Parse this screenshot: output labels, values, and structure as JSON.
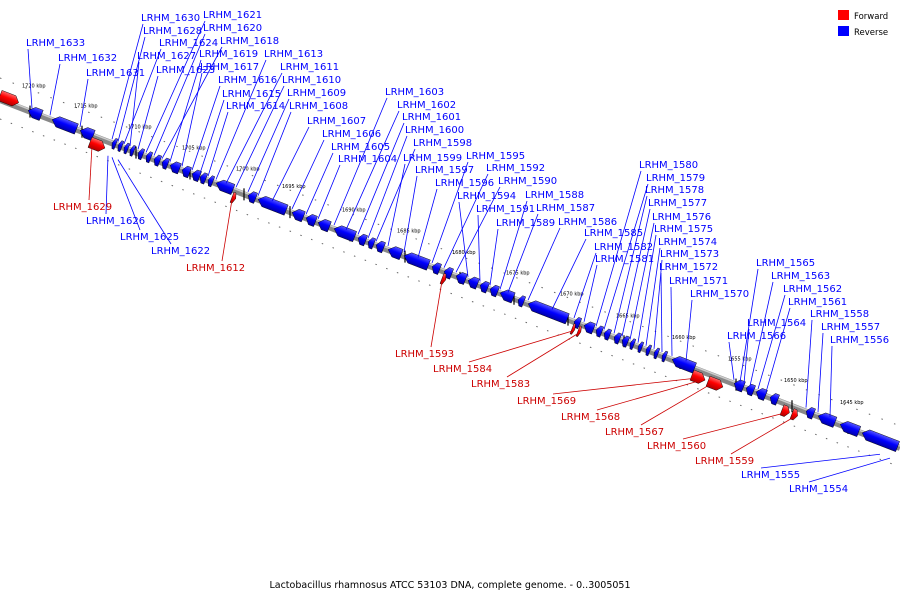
{
  "legend": [
    {
      "label": "Forward",
      "color": "#ff0000"
    },
    {
      "label": "Reverse",
      "color": "#0000ff"
    }
  ],
  "caption": "Lactobacillus rhamnosus ATCC 53103 DNA, complete genome. - 0..3005051",
  "ticks": [
    "1720 kbp",
    "1715 kbp",
    "1710 kbp",
    "1705 kbp",
    "1700 kbp",
    "1695 kbp",
    "1690 kbp",
    "1685 kbp",
    "1680 kbp",
    "1675 kbp",
    "1670 kbp",
    "1665 kbp",
    "1660 kbp",
    "1655 kbp",
    "1650 kbp",
    "1645 kbp"
  ],
  "reverse_genes": [
    "LRHM_1633",
    "LRHM_1632",
    "LRHM_1631",
    "LRHM_1630",
    "LRHM_1628",
    "LRHM_1624",
    "LRHM_1627",
    "LRHM_1623",
    "LRHM_1621",
    "LRHM_1620",
    "LRHM_1618",
    "LRHM_1619",
    "LRHM_1617",
    "LRHM_1616",
    "LRHM_1615",
    "LRHM_1614",
    "LRHM_1613",
    "LRHM_1611",
    "LRHM_1610",
    "LRHM_1609",
    "LRHM_1608",
    "LRHM_1607",
    "LRHM_1606",
    "LRHM_1605",
    "LRHM_1604",
    "LRHM_1603",
    "LRHM_1602",
    "LRHM_1601",
    "LRHM_1600",
    "LRHM_1598",
    "LRHM_1599",
    "LRHM_1597",
    "LRHM_1596",
    "LRHM_1595",
    "LRHM_1592",
    "LRHM_1590",
    "LRHM_1594",
    "LRHM_1591",
    "LRHM_1589",
    "LRHM_1588",
    "LRHM_1587",
    "LRHM_1586",
    "LRHM_1585",
    "LRHM_1582",
    "LRHM_1581",
    "LRHM_1580",
    "LRHM_1579",
    "LRHM_1578",
    "LRHM_1577",
    "LRHM_1576",
    "LRHM_1575",
    "LRHM_1574",
    "LRHM_1573",
    "LRHM_1572",
    "LRHM_1571",
    "LRHM_1570",
    "LRHM_1626",
    "LRHM_1625",
    "LRHM_1622",
    "LRHM_1565",
    "LRHM_1563",
    "LRHM_1562",
    "LRHM_1561",
    "LRHM_1564",
    "LRHM_1566",
    "LRHM_1558",
    "LRHM_1557",
    "LRHM_1556",
    "LRHM_1555",
    "LRHM_1554"
  ],
  "forward_genes": [
    "LRHM_1629",
    "LRHM_1612",
    "LRHM_1593",
    "LRHM_1584",
    "LRHM_1583",
    "LRHM_1569",
    "LRHM_1568",
    "LRHM_1567",
    "LRHM_1560",
    "LRHM_1559"
  ]
}
